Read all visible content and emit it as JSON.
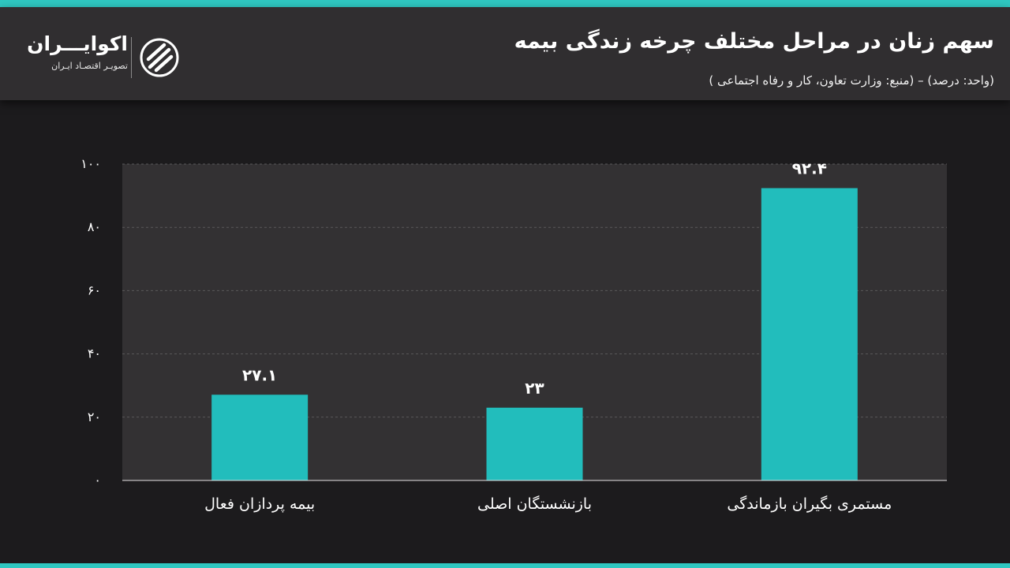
{
  "header": {
    "title": "سهم زنان در مراحل مختلف چرخه زندگی بیمه",
    "subtitle": "(واحد: درصد) – (منبع: وزارت تعاون، کار و رفاه اجتماعی )"
  },
  "logo": {
    "name": "اکوایـــران",
    "tagline": "تصویـر اقتصـاد ایـران",
    "icon": "ecoiran-logo-icon"
  },
  "colors": {
    "bar": "#22bdbc",
    "accent_strip": "#2fc7c0",
    "header_bg": "#302e30",
    "plot_bg": "#333133",
    "page_bg": "#1c1b1d"
  },
  "chart_data": {
    "type": "bar",
    "title": "سهم زنان در مراحل مختلف چرخه زندگی بیمه",
    "categories": [
      "بیمه پردازان فعال",
      "بازنشستگان اصلی",
      "مستمری بگیران بازماندگی"
    ],
    "values": [
      27.1,
      23,
      92.4
    ],
    "value_labels": [
      "۲۷.۱",
      "۲۳",
      "۹۲.۴"
    ],
    "ylim": [
      0,
      100
    ],
    "yticks": [
      0,
      20,
      40,
      60,
      80,
      100
    ],
    "ytick_labels": [
      "۰",
      "۲۰",
      "۴۰",
      "۶۰",
      "۸۰",
      "۱۰۰"
    ],
    "grid": "horizontal-dashed",
    "legend": "none"
  }
}
